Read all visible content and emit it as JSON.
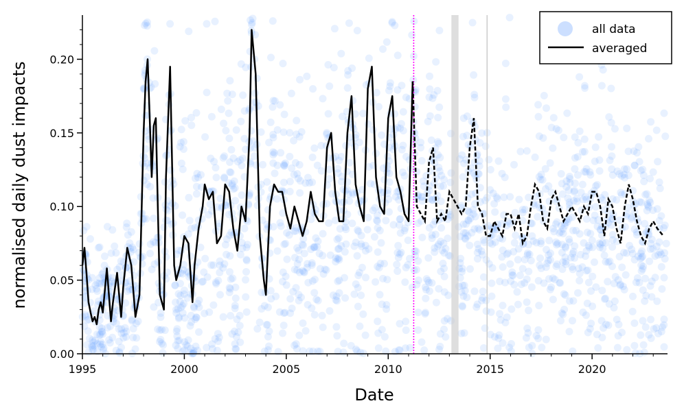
{
  "chart_data": {
    "type": "scatter",
    "title": "",
    "xlabel": "Date",
    "ylabel": "normalised daily dust impacts",
    "xlim": [
      1995,
      2023.7
    ],
    "ylim": [
      0,
      0.23
    ],
    "x_ticks": [
      1995,
      2000,
      2005,
      2010,
      2015,
      2020
    ],
    "x_tick_labels": [
      "1995",
      "2000",
      "2005",
      "2010",
      "2015",
      "2020"
    ],
    "y_ticks": [
      0,
      0.05,
      0.1,
      0.15,
      0.2
    ],
    "y_tick_labels": [
      "0.00",
      "0.05",
      "0.10",
      "0.15",
      "0.20"
    ],
    "grid": false,
    "legend": {
      "position": "top-right",
      "entries": [
        {
          "label": "all data",
          "marker": "circle",
          "color": "#7fb0ff"
        },
        {
          "label": "averaged",
          "marker": "line",
          "color": "#000000"
        }
      ]
    },
    "colors": {
      "scatter": "#5c9bff",
      "line": "#000000",
      "marker_line": "#ff00ff",
      "gap_band": "#c8c8c8"
    },
    "annotations": {
      "vertical_dotted_line_x": 2011.25,
      "gray_band_x": [
        2013.1,
        2013.45
      ],
      "thin_vertical_line_x": 2014.85
    },
    "series": [
      {
        "name": "averaged",
        "style_change_at": 2011.25,
        "solid_before": true,
        "dashed_after": true,
        "x": [
          1995.0,
          1995.1,
          1995.2,
          1995.3,
          1995.4,
          1995.5,
          1995.6,
          1995.7,
          1995.8,
          1995.9,
          1996.0,
          1996.2,
          1996.4,
          1996.5,
          1996.7,
          1996.9,
          1997.0,
          1997.2,
          1997.4,
          1997.6,
          1997.8,
          1998.0,
          1998.1,
          1998.2,
          1998.3,
          1998.4,
          1998.5,
          1998.6,
          1998.7,
          1998.8,
          1999.0,
          1999.1,
          1999.3,
          1999.5,
          1999.6,
          1999.8,
          2000.0,
          2000.2,
          2000.4,
          2000.5,
          2000.7,
          2000.9,
          2001.0,
          2001.2,
          2001.4,
          2001.6,
          2001.8,
          2002.0,
          2002.2,
          2002.4,
          2002.6,
          2002.8,
          2003.0,
          2003.2,
          2003.3,
          2003.5,
          2003.7,
          2003.9,
          2004.0,
          2004.2,
          2004.4,
          2004.6,
          2004.8,
          2005.0,
          2005.2,
          2005.4,
          2005.6,
          2005.8,
          2006.0,
          2006.2,
          2006.4,
          2006.6,
          2006.8,
          2007.0,
          2007.2,
          2007.4,
          2007.6,
          2007.8,
          2008.0,
          2008.2,
          2008.4,
          2008.6,
          2008.8,
          2009.0,
          2009.2,
          2009.4,
          2009.6,
          2009.8,
          2010.0,
          2010.2,
          2010.4,
          2010.6,
          2010.8,
          2011.0,
          2011.2,
          2011.4,
          2011.6,
          2011.8,
          2012.0,
          2012.2,
          2012.4,
          2012.6,
          2012.8,
          2013.0,
          2013.6,
          2013.8,
          2014.0,
          2014.2,
          2014.4,
          2014.6,
          2014.8,
          2015.0,
          2015.2,
          2015.4,
          2015.6,
          2015.8,
          2016.0,
          2016.2,
          2016.4,
          2016.6,
          2016.8,
          2017.0,
          2017.2,
          2017.4,
          2017.6,
          2017.8,
          2018.0,
          2018.2,
          2018.4,
          2018.6,
          2018.8,
          2019.0,
          2019.2,
          2019.4,
          2019.6,
          2019.8,
          2020.0,
          2020.2,
          2020.4,
          2020.6,
          2020.8,
          2021.0,
          2021.2,
          2021.4,
          2021.6,
          2021.8,
          2022.0,
          2022.2,
          2022.4,
          2022.6,
          2022.8,
          2023.0,
          2023.2,
          2023.5
        ],
        "y": [
          0.06,
          0.072,
          0.055,
          0.035,
          0.028,
          0.022,
          0.025,
          0.02,
          0.03,
          0.035,
          0.028,
          0.058,
          0.022,
          0.035,
          0.055,
          0.025,
          0.045,
          0.072,
          0.06,
          0.025,
          0.04,
          0.15,
          0.185,
          0.2,
          0.16,
          0.12,
          0.155,
          0.16,
          0.1,
          0.04,
          0.03,
          0.12,
          0.195,
          0.06,
          0.05,
          0.06,
          0.08,
          0.075,
          0.035,
          0.06,
          0.085,
          0.1,
          0.115,
          0.105,
          0.11,
          0.075,
          0.08,
          0.115,
          0.11,
          0.085,
          0.07,
          0.1,
          0.09,
          0.15,
          0.22,
          0.19,
          0.08,
          0.05,
          0.04,
          0.1,
          0.115,
          0.11,
          0.11,
          0.095,
          0.085,
          0.1,
          0.09,
          0.08,
          0.09,
          0.11,
          0.095,
          0.09,
          0.09,
          0.14,
          0.15,
          0.11,
          0.09,
          0.09,
          0.15,
          0.175,
          0.115,
          0.1,
          0.09,
          0.18,
          0.195,
          0.12,
          0.1,
          0.095,
          0.16,
          0.175,
          0.12,
          0.11,
          0.095,
          0.09,
          0.185,
          0.1,
          0.095,
          0.09,
          0.13,
          0.14,
          0.09,
          0.095,
          0.09,
          0.11,
          0.095,
          0.1,
          0.14,
          0.16,
          0.1,
          0.095,
          0.08,
          0.08,
          0.09,
          0.085,
          0.08,
          0.095,
          0.095,
          0.085,
          0.095,
          0.075,
          0.08,
          0.1,
          0.115,
          0.11,
          0.09,
          0.085,
          0.105,
          0.11,
          0.1,
          0.09,
          0.095,
          0.1,
          0.095,
          0.09,
          0.1,
          0.095,
          0.11,
          0.11,
          0.1,
          0.08,
          0.105,
          0.1,
          0.085,
          0.075,
          0.1,
          0.115,
          0.105,
          0.09,
          0.08,
          0.075,
          0.085,
          0.09,
          0.085,
          0.08
        ]
      }
    ]
  }
}
